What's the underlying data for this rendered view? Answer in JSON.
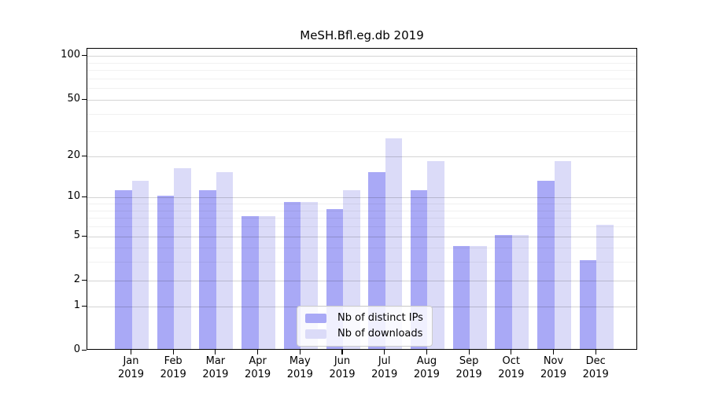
{
  "figure": {
    "title": "MeSH.Bfl.eg.db 2019"
  },
  "chart_data": {
    "type": "bar",
    "title": "MeSH.Bfl.eg.db 2019",
    "categories": [
      "Jan 2019",
      "Feb 2019",
      "Mar 2019",
      "Apr 2019",
      "May 2019",
      "Jun 2019",
      "Jul 2019",
      "Aug 2019",
      "Sep 2019",
      "Oct 2019",
      "Nov 2019",
      "Dec 2019"
    ],
    "x_tick_months": [
      "Jan",
      "Feb",
      "Mar",
      "Apr",
      "May",
      "Jun",
      "Jul",
      "Aug",
      "Sep",
      "Oct",
      "Nov",
      "Dec"
    ],
    "x_tick_year": "2019",
    "series": [
      {
        "name": "Nb of distinct IPs",
        "color": "#a9a9f6",
        "values": [
          11,
          10,
          11,
          7,
          9,
          8,
          15,
          11,
          4,
          5,
          13,
          3
        ]
      },
      {
        "name": "Nb of downloads",
        "color": "#dbdbf8",
        "values": [
          13,
          16,
          15,
          7,
          9,
          11,
          26,
          18,
          4,
          5,
          18,
          6
        ]
      }
    ],
    "yscale": "log1p",
    "ylim": [
      0,
      113
    ],
    "yticks": [
      100,
      50,
      20,
      10,
      5,
      2,
      1,
      0
    ],
    "ytick_labels": [
      "100",
      "50",
      "20",
      "10",
      "5",
      "2",
      "1",
      "0"
    ],
    "major_gridlines": [
      1,
      2,
      5,
      10,
      20,
      50,
      100
    ],
    "minor_gridlines": [
      3,
      4,
      6,
      7,
      8,
      9,
      30,
      40,
      60,
      70,
      80,
      90
    ],
    "grid": true,
    "legend_position": "inside lower-center",
    "legend_entries": [
      "Nb of distinct IPs",
      "Nb of downloads"
    ]
  },
  "colors": {
    "background": "#ffffff",
    "axis_frame": "#000000",
    "ips_bar": "#a9a9f6",
    "downloads_bar": "#dbdbf8",
    "grid_major": "#d4d4d4",
    "grid_minor": "#f0f0f0",
    "legend_border": "#cccccc",
    "text": "#000000"
  }
}
